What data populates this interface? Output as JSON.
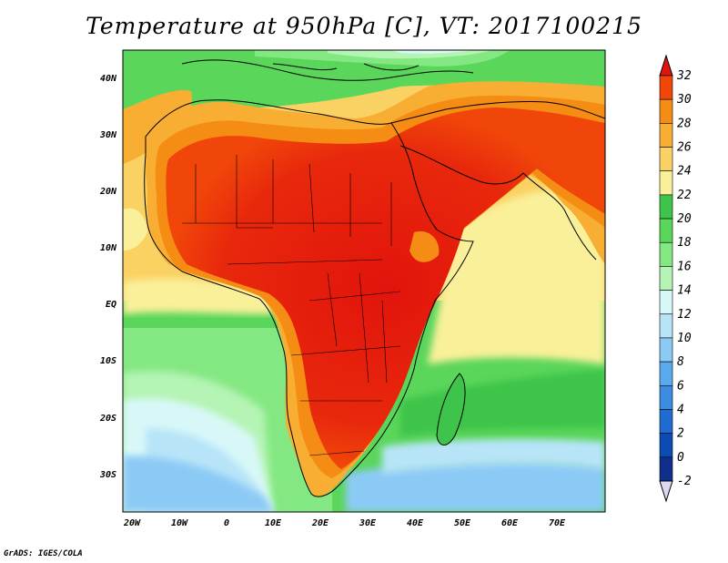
{
  "title": "Temperature at 950hPa [C], VT: 2017100215",
  "credit": "GrADS: IGES/COLA",
  "map": {
    "region": "Africa",
    "variable": "Temperature at 950hPa",
    "units": "C",
    "valid_time": "2017100215",
    "lon_range": [
      -22,
      80
    ],
    "lat_range": [
      -36,
      45
    ],
    "lat_labels": [
      "40N",
      "30N",
      "20N",
      "10N",
      "EQ",
      "10S",
      "20S",
      "30S"
    ],
    "lon_labels": [
      "20W",
      "10W",
      "0",
      "10E",
      "20E",
      "30E",
      "40E",
      "50E",
      "60E",
      "70E"
    ]
  },
  "colorbar": {
    "labels": [
      "32",
      "30",
      "28",
      "26",
      "24",
      "22",
      "20",
      "18",
      "16",
      "14",
      "12",
      "10",
      "8",
      "6",
      "4",
      "2",
      "0",
      "-2"
    ],
    "colors": [
      "#e2140c",
      "#f0460a",
      "#f58c14",
      "#f8ae32",
      "#fad264",
      "#faf09a",
      "#3ec44a",
      "#5ad65a",
      "#84e882",
      "#b4f4b4",
      "#d8f8f8",
      "#b8e4f8",
      "#8ccaf6",
      "#5aaaee",
      "#3c8ce2",
      "#1e6cd2",
      "#0a4cb4",
      "#102e8c",
      "#0a1e64"
    ]
  }
}
